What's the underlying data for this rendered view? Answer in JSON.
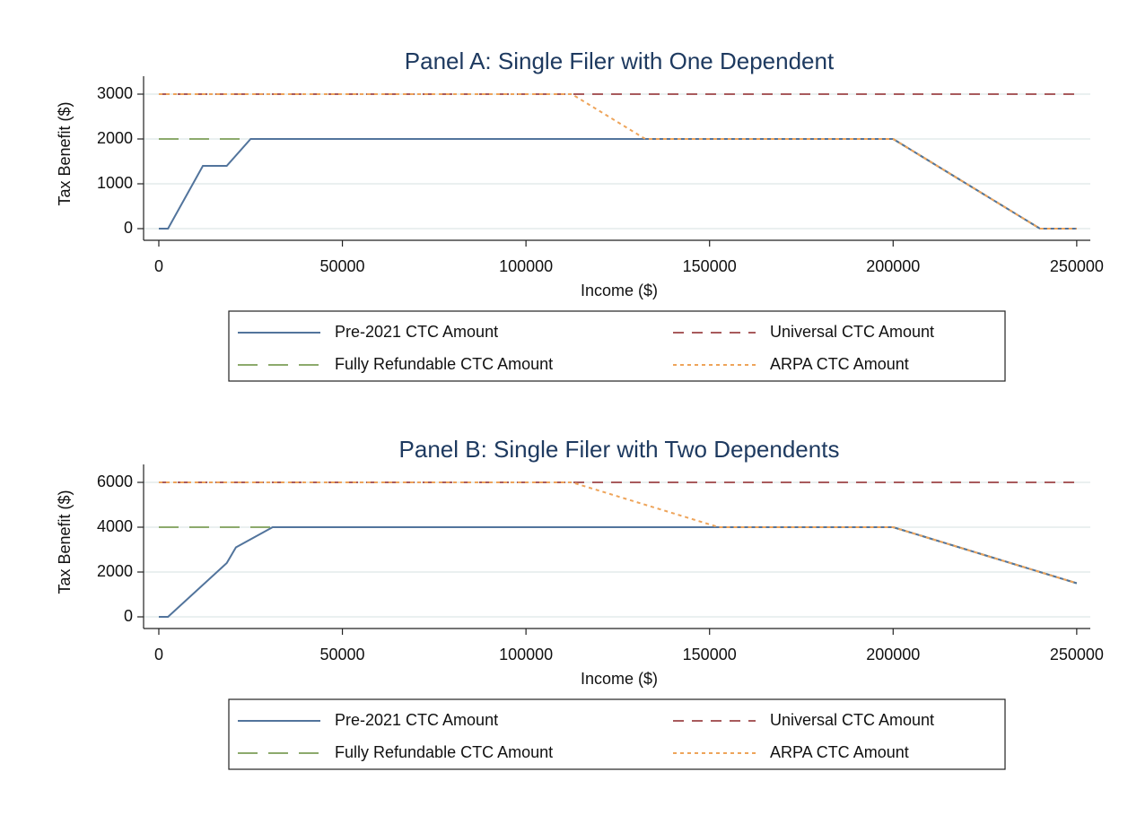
{
  "chart_data": [
    {
      "type": "line",
      "title": "Panel A: Single Filer with One Dependent",
      "xlabel": "Income ($)",
      "ylabel": "Tax Benefit ($)",
      "x": [
        0,
        2500,
        12000,
        18500,
        25000,
        112500,
        132500,
        200000,
        240000,
        250000
      ],
      "series": [
        {
          "name": "Pre-2021 CTC Amount",
          "color": "#52749c",
          "dash": "solid",
          "values": [
            0,
            0,
            1400,
            1400,
            2000,
            2000,
            2000,
            2000,
            0,
            0
          ]
        },
        {
          "name": "Fully Refundable CTC Amount",
          "color": "#8caa6c",
          "dash": "longdash",
          "values": [
            2000,
            2000,
            2000,
            2000,
            2000,
            2000,
            2000,
            2000,
            0,
            0
          ]
        },
        {
          "name": "Universal CTC Amount",
          "color": "#a85a5c",
          "dash": "dash",
          "values": [
            3000,
            3000,
            3000,
            3000,
            3000,
            3000,
            3000,
            3000,
            3000,
            3000
          ]
        },
        {
          "name": "ARPA CTC Amount",
          "color": "#eea45a",
          "dash": "dot",
          "values": [
            3000,
            3000,
            3000,
            3000,
            3000,
            3000,
            2000,
            2000,
            0,
            0
          ]
        }
      ],
      "xlim": [
        -4150,
        253700
      ],
      "xticks": [
        0,
        50000,
        100000,
        150000,
        200000,
        250000
      ],
      "ylim": [
        -260,
        3400
      ],
      "yticks": [
        0,
        1000,
        2000,
        3000
      ],
      "grid": true,
      "legend": "bottom"
    },
    {
      "type": "line",
      "title": "Panel B: Single Filer with Two Dependents",
      "xlabel": "Income ($)",
      "ylabel": "Tax Benefit ($)",
      "x": [
        0,
        2500,
        18500,
        21000,
        31000,
        112500,
        152500,
        200000,
        250000
      ],
      "series": [
        {
          "name": "Pre-2021 CTC Amount",
          "color": "#52749c",
          "dash": "solid",
          "values": [
            0,
            0,
            2400,
            3100,
            4000,
            4000,
            4000,
            4000,
            1500
          ]
        },
        {
          "name": "Fully Refundable CTC Amount",
          "color": "#8caa6c",
          "dash": "longdash",
          "values": [
            4000,
            4000,
            4000,
            4000,
            4000,
            4000,
            4000,
            4000,
            1500
          ]
        },
        {
          "name": "Universal CTC Amount",
          "color": "#a85a5c",
          "dash": "dash",
          "values": [
            6000,
            6000,
            6000,
            6000,
            6000,
            6000,
            6000,
            6000,
            6000
          ]
        },
        {
          "name": "ARPA CTC Amount",
          "color": "#eea45a",
          "dash": "dot",
          "values": [
            6000,
            6000,
            6000,
            6000,
            6000,
            6000,
            4000,
            4000,
            1500
          ]
        }
      ],
      "xlim": [
        -4150,
        253700
      ],
      "xticks": [
        0,
        50000,
        100000,
        150000,
        200000,
        250000
      ],
      "ylim": [
        -520,
        6800
      ],
      "yticks": [
        0,
        2000,
        4000,
        6000
      ],
      "grid": true,
      "legend": "bottom"
    }
  ]
}
